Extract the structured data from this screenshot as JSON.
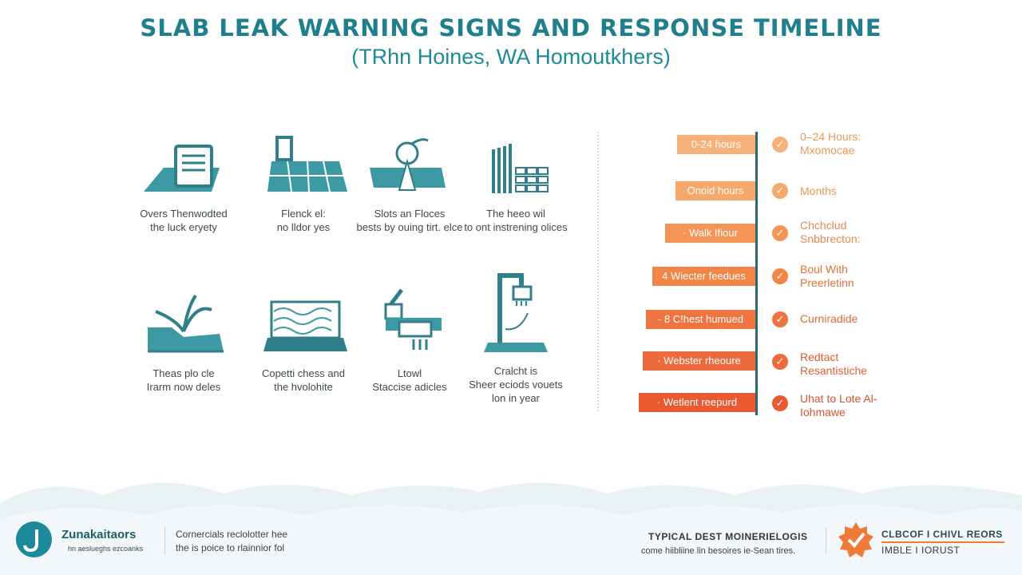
{
  "title": "SLAB LEAK WARNING SIGNS AND RESPONSE TIMELINE",
  "subtitle": "(TRhn Hoines, WA Homoutkhers)",
  "signs": [
    {
      "icon": "document-floor-icon",
      "caption": "Overs Thenwodted\nthe luck eryety"
    },
    {
      "icon": "floor-tiles-icon",
      "caption": "Flenck el:\nno lldor yes"
    },
    {
      "icon": "leak-drop-icon",
      "caption": "Slots an Floces\nbests by ouing tirt. elce"
    },
    {
      "icon": "wall-brick-icon",
      "caption": "The heeo wil\nto ont instrening olices"
    },
    {
      "icon": "plant-crack-icon",
      "caption": "Theas plo cle\nIrarm now deles"
    },
    {
      "icon": "carpet-icon",
      "caption": "Copetti chess and\nthe hvolohite"
    },
    {
      "icon": "faucet-icon",
      "caption": "Ltowl\nStaccise adicles"
    },
    {
      "icon": "shower-icon",
      "caption": "Cralcht is\nSheer eciods vouets\nlon in year"
    }
  ],
  "timeline": [
    {
      "bar": "0-24 hours",
      "response": "0–24 Hours:\nMxomocae",
      "color": "#f6b27a",
      "text_color": "#e79a55"
    },
    {
      "bar": "Onoid hours",
      "response": "Months",
      "color": "#f5a86a",
      "text_color": "#e79a55"
    },
    {
      "bar": "· Walk Ifiour",
      "response": "Chchclud\nSnbbrecton:",
      "color": "#f29556",
      "text_color": "#e68a4b"
    },
    {
      "bar": "4 Wiecter feedues",
      "response": "Boul With\nPreerletinn",
      "color": "#f08546",
      "text_color": "#e0733a"
    },
    {
      "bar": "- 8 C!hest humued",
      "response": "Curniradide",
      "color": "#ee7440",
      "text_color": "#e06a38"
    },
    {
      "bar": "· Webster rheoure",
      "response": "Redtact\nResantistiche",
      "color": "#ec6a3c",
      "text_color": "#de5e33"
    },
    {
      "bar": "· Wetlent reepurd",
      "response": "Uhat to Lote Al-\nIohmawe",
      "color": "#e95a32",
      "text_color": "#d9532c"
    }
  ],
  "footer": {
    "brand": "Zunakaitaors",
    "brand_sub": "hn aeslueghs ezcoanks",
    "note": "Cornercials reclolotter hee\nthe is poice to rlainnior fol",
    "typical_title": "TYPICAL DEST MOINERIELOGIS",
    "typical_sub": "come hiibliine lin besoires ie-Sean tires.",
    "badge_title": "CLBCOF I CHIVL REORS",
    "badge_sub": "IMBLE I IORUST"
  },
  "colors": {
    "teal": "#1f8a97",
    "dark_teal": "#2f6670",
    "orange": "#e06a38"
  }
}
